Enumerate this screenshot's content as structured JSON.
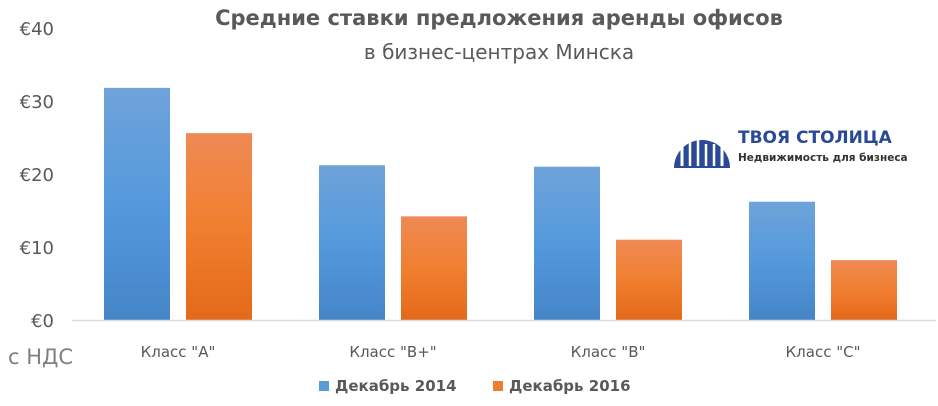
{
  "chart_data": {
    "type": "bar",
    "title": "Средние ставки предложения аренды офисов",
    "subtitle": "в бизнес-центрах Минска",
    "ylabel": "с НДС",
    "xlabel": "",
    "categories": [
      "Класс \"A\"",
      "Класс \"B+\"",
      "Класс \"B\"",
      "Класс \"C\""
    ],
    "series": [
      {
        "name": "Декабрь 2014",
        "values": [
          31.8,
          21.2,
          21.0,
          16.2
        ],
        "color": "#5b9bd5"
      },
      {
        "name": "Декабрь 2016",
        "values": [
          25.6,
          14.2,
          11.0,
          8.2
        ],
        "color": "#ed7d31"
      }
    ],
    "ylim": [
      0,
      40
    ],
    "yticks": [
      0,
      10,
      20,
      30,
      40
    ],
    "ytick_labels": [
      "€0",
      "€10",
      "€20",
      "€30",
      "€40"
    ],
    "grid": false,
    "legend_position": "bottom"
  },
  "logo": {
    "name": "ТВОЯ СТОЛИЦА",
    "tagline": "Недвижимость для бизнеса"
  }
}
